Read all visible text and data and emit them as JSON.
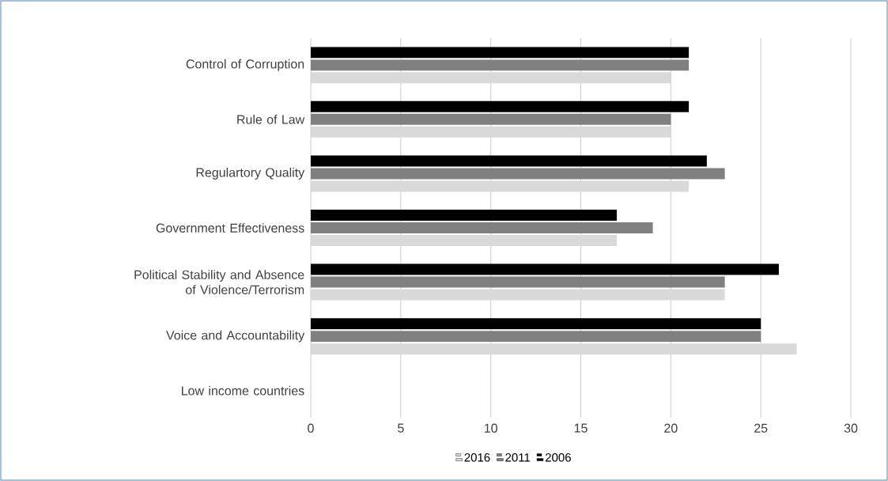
{
  "chart_data": {
    "type": "bar",
    "orientation": "horizontal",
    "categories": [
      "Control of Corruption",
      "Rule of Law",
      "Regulartory Quality",
      "Government Effectiveness",
      "Political Stability and Absence of Violence/Terrorism",
      "Voice and Accountability",
      "Low income countries"
    ],
    "series": [
      {
        "name": "2016",
        "color": "#d9d9d9",
        "values": [
          20,
          20,
          21,
          17,
          23,
          27,
          null
        ]
      },
      {
        "name": "2011",
        "color": "#808080",
        "values": [
          21,
          20,
          23,
          19,
          23,
          25,
          null
        ]
      },
      {
        "name": "2006",
        "color": "#000000",
        "values": [
          21,
          21,
          22,
          17,
          26,
          25,
          null
        ]
      }
    ],
    "xlim": [
      0,
      30
    ],
    "xticks": [
      0,
      5,
      10,
      15,
      20,
      25,
      30
    ],
    "grid": "x",
    "legend": "bottom"
  }
}
